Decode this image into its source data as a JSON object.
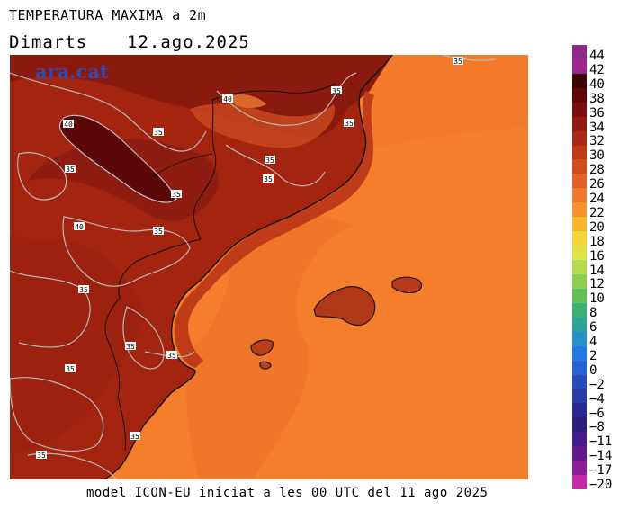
{
  "header": {
    "title": "TEMPERATURA MAXIMA a 2m",
    "day": "Dimarts",
    "date": "12.ago.2025"
  },
  "map": {
    "watermark": "ara.cat",
    "contour_labels": [
      "35",
      "35",
      "40",
      "40",
      "35",
      "35",
      "35",
      "35",
      "35",
      "35",
      "40",
      "35",
      "35",
      "35",
      "35",
      "35",
      "35",
      "35"
    ]
  },
  "legend": {
    "labels": [
      "44",
      "42",
      "40",
      "38",
      "36",
      "34",
      "32",
      "30",
      "28",
      "26",
      "24",
      "22",
      "20",
      "18",
      "16",
      "14",
      "12",
      "10",
      "8",
      "6",
      "4",
      "2",
      "0",
      "−2",
      "−4",
      "−6",
      "−8",
      "−11",
      "−14",
      "−17",
      "−20"
    ],
    "colors": [
      "#8c2b8c",
      "#a0238f",
      "#3d0404",
      "#5e0808",
      "#7a0e0e",
      "#941a10",
      "#a82a14",
      "#bc3a18",
      "#d04c1c",
      "#e2602a",
      "#f07a2c",
      "#f8922e",
      "#f9b431",
      "#f6d43a",
      "#dfe24a",
      "#b6da4e",
      "#8ccd52",
      "#62bf5a",
      "#3fae74",
      "#2ea296",
      "#2691c4",
      "#2478e4",
      "#2662d2",
      "#2a4cba",
      "#2a3aa6",
      "#26298f",
      "#2b1d7c",
      "#421a8a",
      "#62198e",
      "#8a1e96",
      "#c42aa8"
    ]
  },
  "footer": {
    "text": "model ICON-EU iniciat a les 00 UTC del 11 ago 2025"
  }
}
